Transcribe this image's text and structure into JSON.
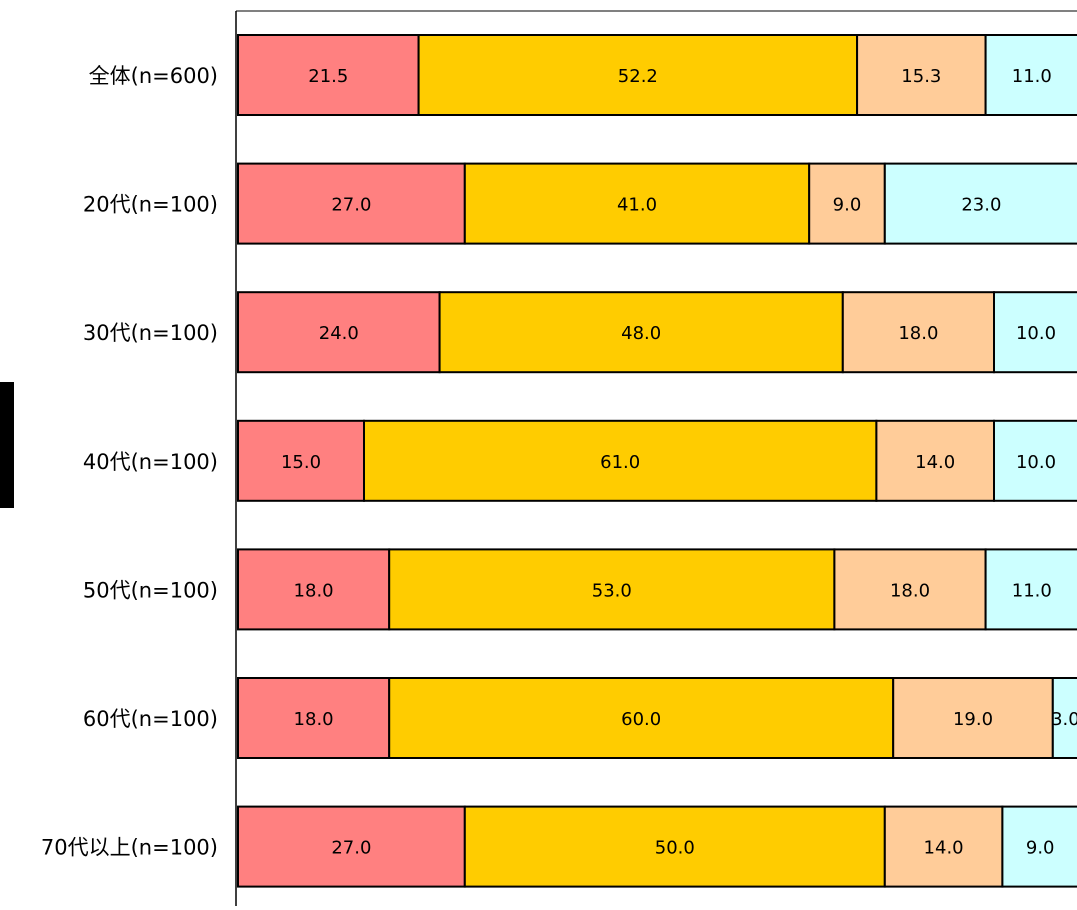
{
  "chart_data": {
    "type": "bar",
    "orientation": "horizontal",
    "stacked": true,
    "percent_stacked": true,
    "categories": [
      "全体(n=600)",
      "20代(n=100)",
      "30代(n=100)",
      "40代(n=100)",
      "50代(n=100)",
      "60代(n=100)",
      "70代以上(n=100)"
    ],
    "series": [
      {
        "values": [
          21.5,
          27.0,
          24.0,
          15.0,
          18.0,
          18.0,
          27.0
        ],
        "labels": [
          "21.5",
          "27.0",
          "24.0",
          "15.0",
          "18.0",
          "18.0",
          "27.0"
        ],
        "color": "#ff8080"
      },
      {
        "values": [
          52.2,
          41.0,
          48.0,
          61.0,
          53.0,
          60.0,
          50.0
        ],
        "labels": [
          "52.2",
          "41.0",
          "48.0",
          "61.0",
          "53.0",
          "60.0",
          "50.0"
        ],
        "color": "#ffcc00"
      },
      {
        "values": [
          15.3,
          9.0,
          18.0,
          14.0,
          18.0,
          19.0,
          14.0
        ],
        "labels": [
          "15.3",
          "9.0",
          "18.0",
          "14.0",
          "18.0",
          "19.0",
          "14.0"
        ],
        "color": "#ffcc99"
      },
      {
        "values": [
          11.0,
          23.0,
          10.0,
          10.0,
          11.0,
          3.0,
          9.0
        ],
        "labels": [
          "11.0",
          "23.0",
          "10.0",
          "10.0",
          "11.0",
          "3.0",
          "9.0"
        ],
        "color": "#ccffff"
      }
    ],
    "xlim": [
      0,
      100
    ],
    "grid": false,
    "legend": "none",
    "title": "",
    "xlabel": "",
    "ylabel": ""
  }
}
